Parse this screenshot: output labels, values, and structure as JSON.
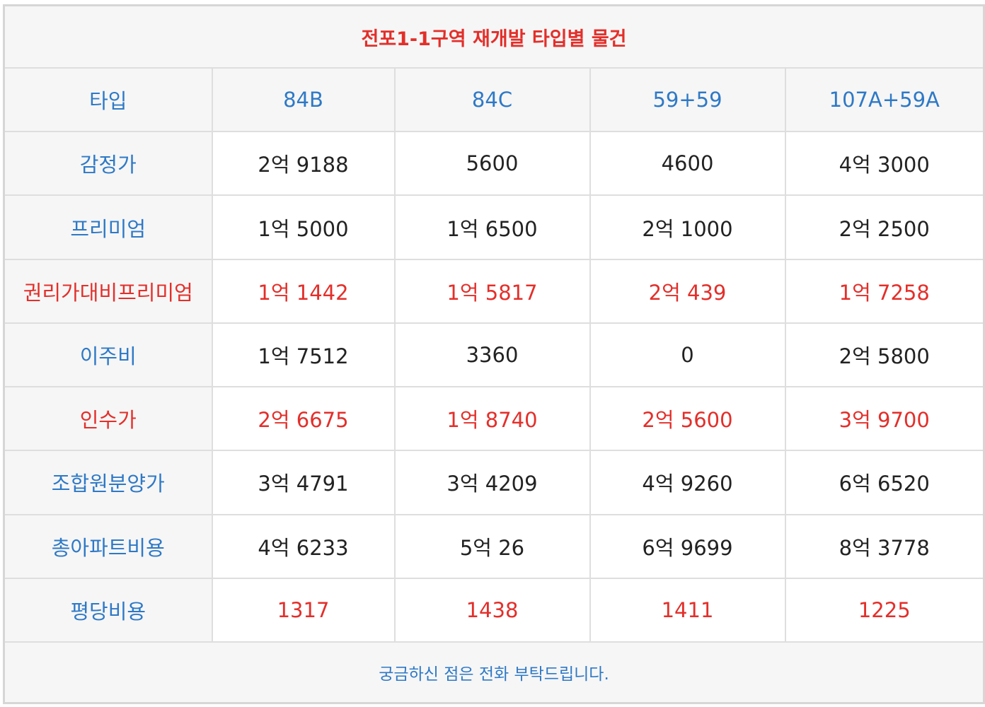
{
  "title": "전포1-1구역 재개발 타입별 물건",
  "colors": {
    "red": "#e32f2a",
    "blue": "#2e79c6",
    "header_bg": "#f6f6f6",
    "border": "#dedede"
  },
  "header": {
    "label": "타입",
    "types": [
      "84B",
      "84C",
      "59+59",
      "107A+59A"
    ]
  },
  "rows": [
    {
      "label": "감정가",
      "values": [
        "2억 9188",
        "5600",
        "4600",
        "4억 3000"
      ]
    },
    {
      "label": "프리미엄",
      "values": [
        "1억 5000",
        "1억 6500",
        "2억 1000",
        "2억 2500"
      ]
    },
    {
      "label": "권리가대비프리미엄",
      "values": [
        "1억 1442",
        "1억 5817",
        "2억 439",
        "1억 7258"
      ]
    },
    {
      "label": "이주비",
      "values": [
        "1억 7512",
        "3360",
        "0",
        "2억 5800"
      ]
    },
    {
      "label": "인수가",
      "values": [
        "2억 6675",
        "1억 8740",
        "2억 5600",
        "3억 9700"
      ]
    },
    {
      "label": "조합원분양가",
      "values": [
        "3억 4791",
        "3억 4209",
        "4억 9260",
        "6억 6520"
      ]
    },
    {
      "label": "총아파트비용",
      "values": [
        "4억 6233",
        "5억 26",
        "6억 9699",
        "8억 3778"
      ]
    },
    {
      "label": "평당비용",
      "values": [
        "1317",
        "1438",
        "1411",
        "1225"
      ]
    }
  ],
  "footer": "궁금하신 점은 전화 부탁드립니다."
}
